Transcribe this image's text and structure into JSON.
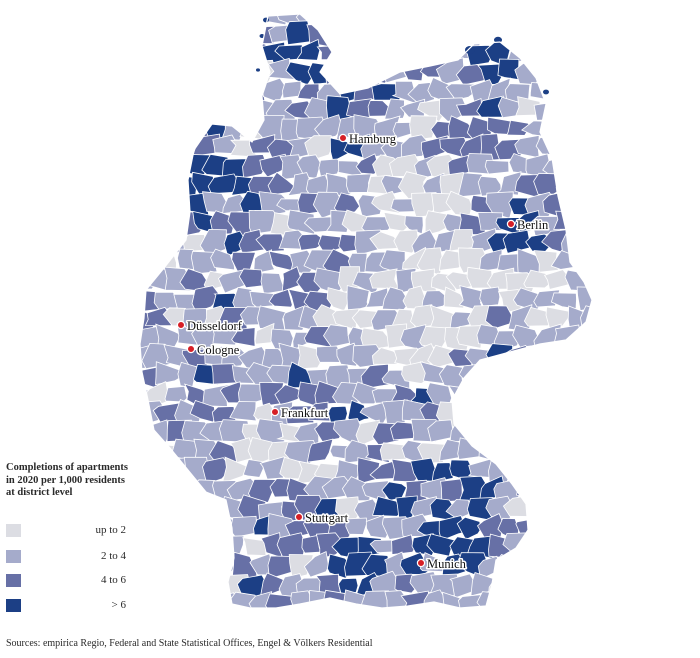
{
  "map": {
    "colors": {
      "up_to_2": "#dcdde3",
      "two_to_four": "#a5abcb",
      "four_to_six": "#6770a6",
      "over_six": "#1c3f85",
      "district_border": "#ffffff",
      "city_marker": "#d61f26"
    },
    "cities": [
      {
        "name": "Hamburg",
        "id": "hamburg"
      },
      {
        "name": "Berlin",
        "id": "berlin"
      },
      {
        "name": "Düsseldorf",
        "id": "dusseldorf"
      },
      {
        "name": "Cologne",
        "id": "cologne"
      },
      {
        "name": "Frankfurt",
        "id": "frankfurt"
      },
      {
        "name": "Stuttgart",
        "id": "stuttgart"
      },
      {
        "name": "Munich",
        "id": "munich"
      }
    ]
  },
  "legend": {
    "title_lines": [
      "Completions of apartments",
      "in 2020 per 1,000 residents",
      "at district level"
    ],
    "items": [
      {
        "label": "up to 2",
        "color": "#dcdde3"
      },
      {
        "label": "2 to 4",
        "color": "#a5abcb"
      },
      {
        "label": "4 to 6",
        "color": "#6770a6"
      },
      {
        "label": "> 6",
        "color": "#1c3f85"
      }
    ]
  },
  "source": "Sources: empirica Regio, Federal and State Statistical Offices, Engel & Völkers Residential"
}
